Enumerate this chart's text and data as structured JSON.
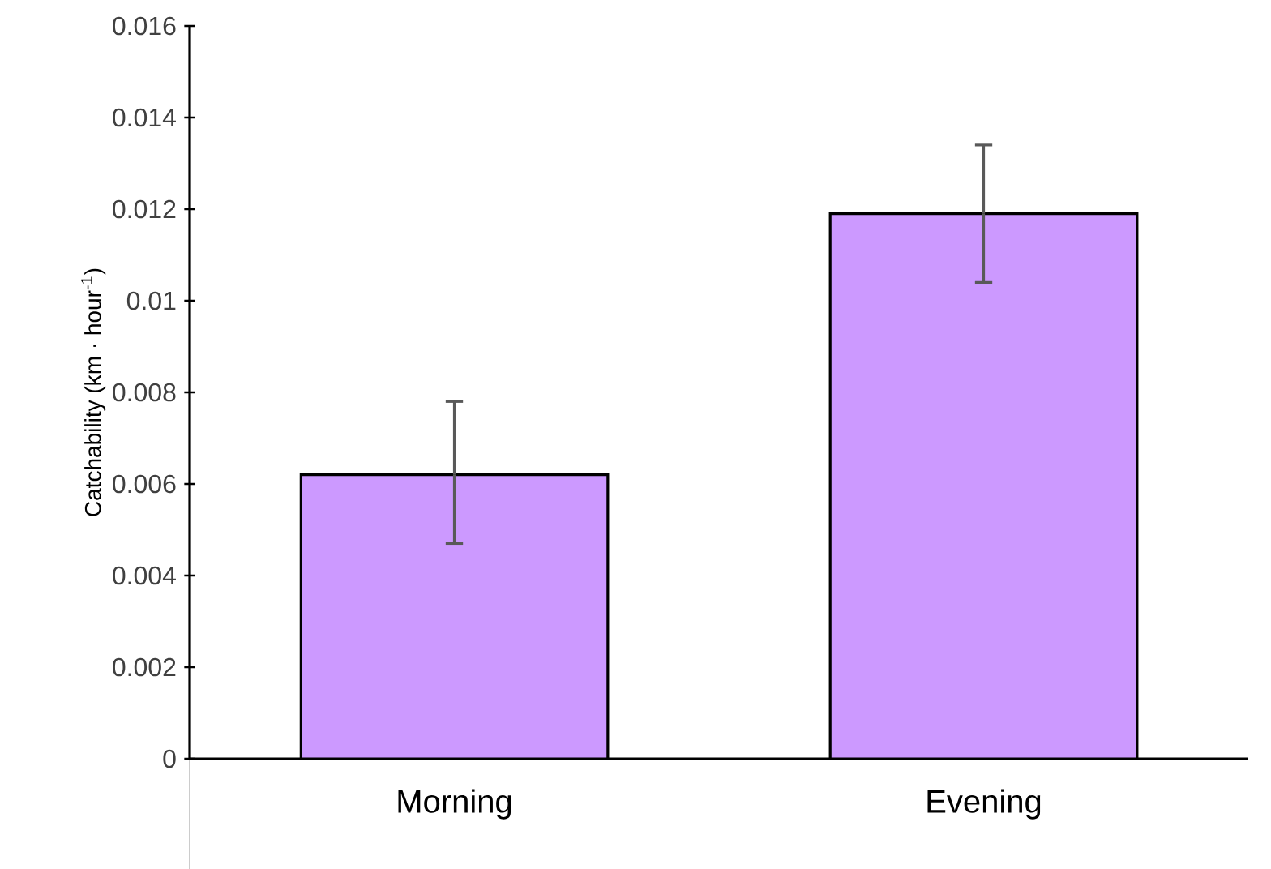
{
  "chart_data": {
    "type": "bar",
    "ylabel": "Catchability (km · hour$^{-1}$)",
    "categories": [
      "Morning",
      "Evening"
    ],
    "values": [
      0.0062,
      0.0119
    ],
    "errors": [
      [
        0.0047,
        0.0078
      ],
      [
        0.0104,
        0.0134
      ]
    ],
    "color": "#cc99ff",
    "ylim": [
      0,
      0.016
    ],
    "yticks": [
      0,
      0.002,
      0.004,
      0.006,
      0.008,
      0.01,
      0.012,
      0.014,
      0.016
    ]
  }
}
